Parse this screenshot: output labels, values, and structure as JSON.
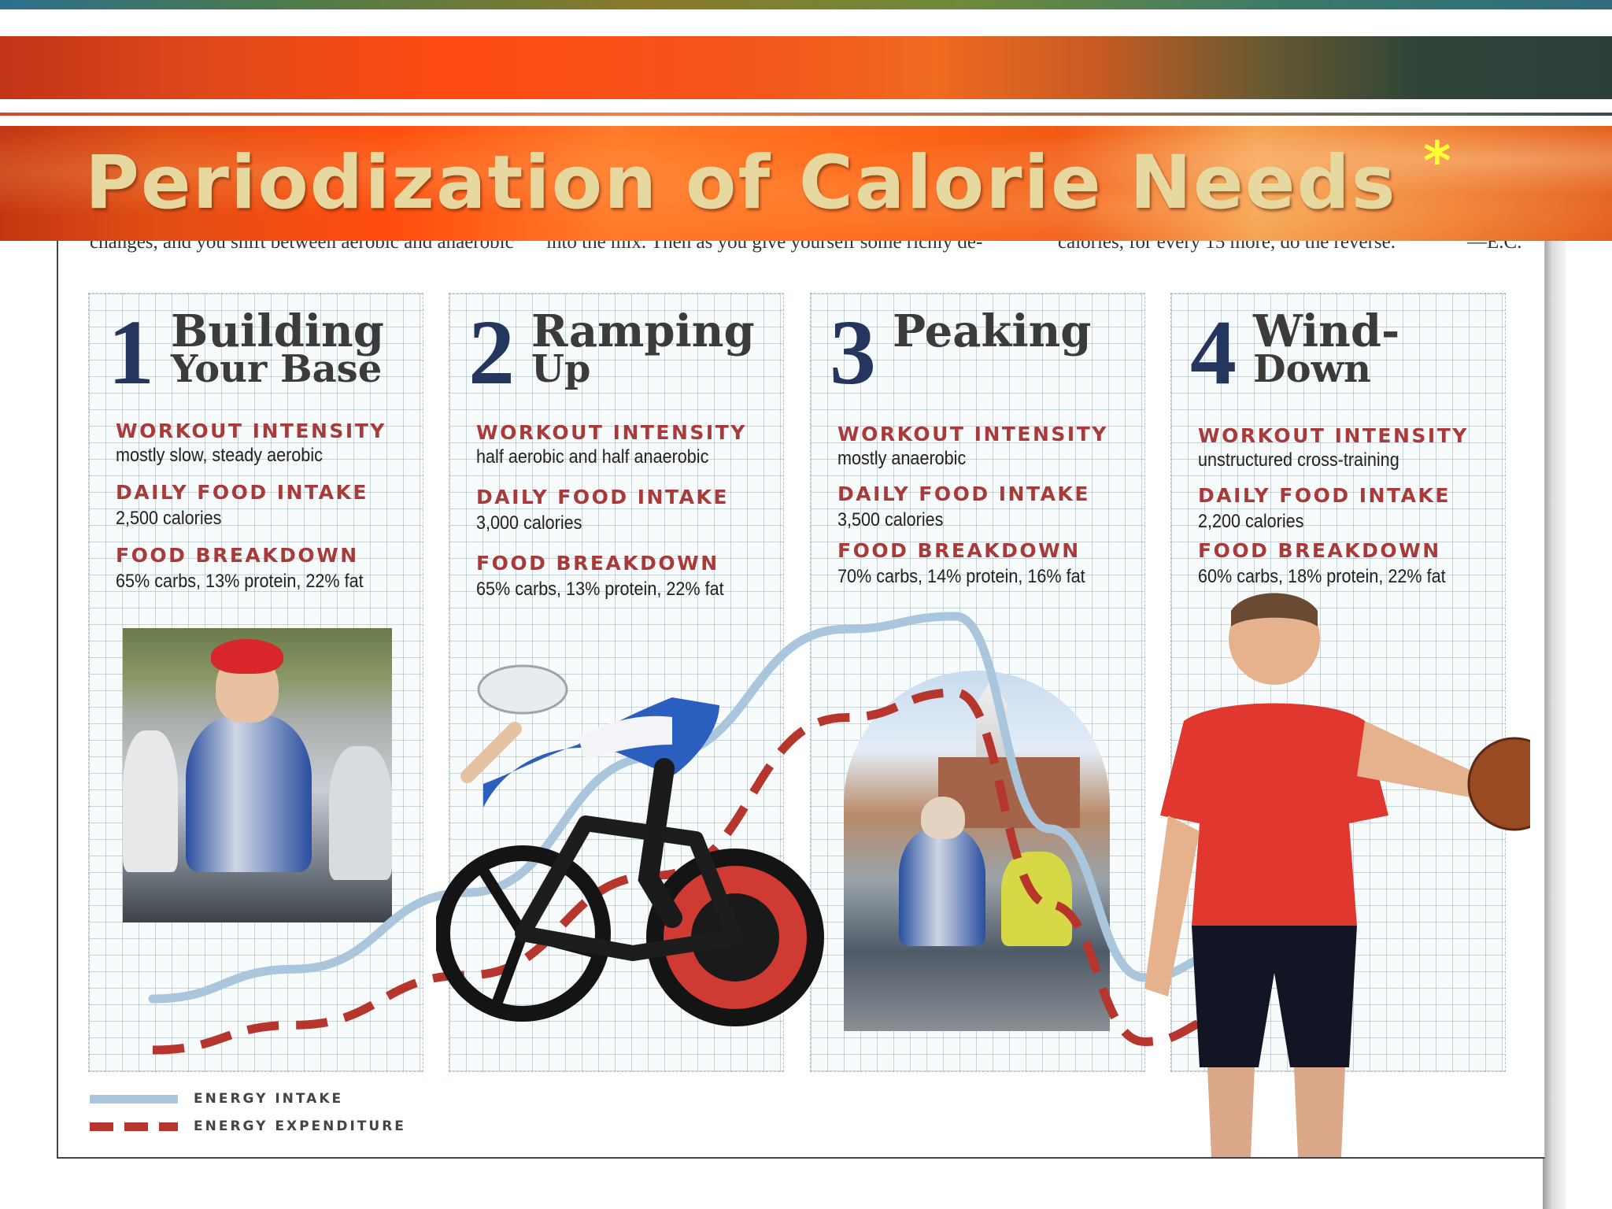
{
  "slide": {
    "title": "Periodization of Calorie Needs",
    "title_mark": "*"
  },
  "article_cut_text": [
    "changes, and you shift between aerobic and anaerobic",
    "into the mix. Then as you give yourself some richly de-",
    "calories, for every 15 more, do the reverse.",
    "—E.C."
  ],
  "stages": [
    {
      "number": "1",
      "title_line1": "Building",
      "title_line2": "Your Base",
      "workout_label": "WORKOUT INTENSITY",
      "workout_value": "mostly slow, steady aerobic",
      "intake_label": "DAILY FOOD INTAKE",
      "intake_value": "2,500 calories",
      "breakdown_label": "FOOD BREAKDOWN",
      "breakdown_value": "65% carbs, 13% protein, 22% fat"
    },
    {
      "number": "2",
      "title_line1": "Ramping",
      "title_line2": "Up",
      "workout_label": "WORKOUT INTENSITY",
      "workout_value": "half aerobic and half anaerobic",
      "intake_label": "DAILY FOOD INTAKE",
      "intake_value": "3,000 calories",
      "breakdown_label": "FOOD BREAKDOWN",
      "breakdown_value": "65% carbs, 13% protein, 22% fat"
    },
    {
      "number": "3",
      "title_line1": "Peaking",
      "title_line2": "",
      "workout_label": "WORKOUT INTENSITY",
      "workout_value": "mostly anaerobic",
      "intake_label": "DAILY FOOD INTAKE",
      "intake_value": "3,500 calories",
      "breakdown_label": "FOOD BREAKDOWN",
      "breakdown_value": "70% carbs, 14% protein, 16% fat"
    },
    {
      "number": "4",
      "title_line1": "Wind-",
      "title_line2": "Down",
      "workout_label": "WORKOUT INTENSITY",
      "workout_value": "unstructured cross-training",
      "intake_label": "DAILY FOOD INTAKE",
      "intake_value": "2,200 calories",
      "breakdown_label": "FOOD BREAKDOWN",
      "breakdown_value": "60% carbs, 18% protein, 22% fat"
    }
  ],
  "legend": {
    "intake": "ENERGY INTAKE",
    "expenditure": "ENERGY EXPENDITURE"
  },
  "colors": {
    "intake_line": "#a9c6dc",
    "expenditure_line": "#b6352d",
    "stage_number": "#24365e",
    "label_red": "#a83a3a",
    "title_text": "#e7d8a0",
    "title_star": "#ffff33"
  },
  "curve_levels": {
    "note_units": "relative level 0-1 across the four stages (read from the drawn curves)",
    "intake": [
      0.05,
      0.12,
      0.3,
      0.62,
      0.92,
      0.95,
      0.45,
      0.1,
      0.16
    ],
    "expenditure": [
      0.0,
      0.06,
      0.18,
      0.42,
      0.8,
      0.86,
      0.35,
      0.02,
      0.08
    ]
  }
}
